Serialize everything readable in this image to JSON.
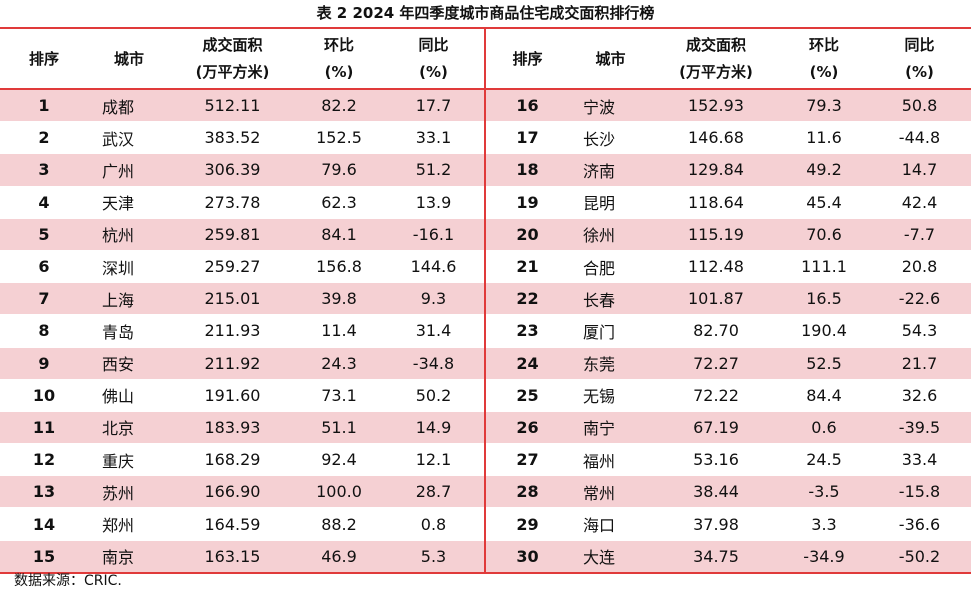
{
  "title": "表 2   2024 年四季度城市商品住宅成交面积排行榜",
  "headers": {
    "rank": "排序",
    "city": "城市",
    "area_l1": "成交面积",
    "area_l2": "(万平方米)",
    "mom_l1": "环比",
    "mom_l2": "(%)",
    "yoy_l1": "同比",
    "yoy_l2": "(%)"
  },
  "rows": [
    {
      "rank": "1",
      "city": "成都",
      "area": "512.11",
      "mom": "82.2",
      "yoy": "17.7"
    },
    {
      "rank": "2",
      "city": "武汉",
      "area": "383.52",
      "mom": "152.5",
      "yoy": "33.1"
    },
    {
      "rank": "3",
      "city": "广州",
      "area": "306.39",
      "mom": "79.6",
      "yoy": "51.2"
    },
    {
      "rank": "4",
      "city": "天津",
      "area": "273.78",
      "mom": "62.3",
      "yoy": "13.9"
    },
    {
      "rank": "5",
      "city": "杭州",
      "area": "259.81",
      "mom": "84.1",
      "yoy": "-16.1"
    },
    {
      "rank": "6",
      "city": "深圳",
      "area": "259.27",
      "mom": "156.8",
      "yoy": "144.6"
    },
    {
      "rank": "7",
      "city": "上海",
      "area": "215.01",
      "mom": "39.8",
      "yoy": "9.3"
    },
    {
      "rank": "8",
      "city": "青岛",
      "area": "211.93",
      "mom": "11.4",
      "yoy": "31.4"
    },
    {
      "rank": "9",
      "city": "西安",
      "area": "211.92",
      "mom": "24.3",
      "yoy": "-34.8"
    },
    {
      "rank": "10",
      "city": "佛山",
      "area": "191.60",
      "mom": "73.1",
      "yoy": "50.2"
    },
    {
      "rank": "11",
      "city": "北京",
      "area": "183.93",
      "mom": "51.1",
      "yoy": "14.9"
    },
    {
      "rank": "12",
      "city": "重庆",
      "area": "168.29",
      "mom": "92.4",
      "yoy": "12.1"
    },
    {
      "rank": "13",
      "city": "苏州",
      "area": "166.90",
      "mom": "100.0",
      "yoy": "28.7"
    },
    {
      "rank": "14",
      "city": "郑州",
      "area": "164.59",
      "mom": "88.2",
      "yoy": "0.8"
    },
    {
      "rank": "15",
      "city": "南京",
      "area": "163.15",
      "mom": "46.9",
      "yoy": "5.3"
    },
    {
      "rank": "16",
      "city": "宁波",
      "area": "152.93",
      "mom": "79.3",
      "yoy": "50.8"
    },
    {
      "rank": "17",
      "city": "长沙",
      "area": "146.68",
      "mom": "11.6",
      "yoy": "-44.8"
    },
    {
      "rank": "18",
      "city": "济南",
      "area": "129.84",
      "mom": "49.2",
      "yoy": "14.7"
    },
    {
      "rank": "19",
      "city": "昆明",
      "area": "118.64",
      "mom": "45.4",
      "yoy": "42.4"
    },
    {
      "rank": "20",
      "city": "徐州",
      "area": "115.19",
      "mom": "70.6",
      "yoy": "-7.7"
    },
    {
      "rank": "21",
      "city": "合肥",
      "area": "112.48",
      "mom": "111.1",
      "yoy": "20.8"
    },
    {
      "rank": "22",
      "city": "长春",
      "area": "101.87",
      "mom": "16.5",
      "yoy": "-22.6"
    },
    {
      "rank": "23",
      "city": "厦门",
      "area": "82.70",
      "mom": "190.4",
      "yoy": "54.3"
    },
    {
      "rank": "24",
      "city": "东莞",
      "area": "72.27",
      "mom": "52.5",
      "yoy": "21.7"
    },
    {
      "rank": "25",
      "city": "无锡",
      "area": "72.22",
      "mom": "84.4",
      "yoy": "32.6"
    },
    {
      "rank": "26",
      "city": "南宁",
      "area": "67.19",
      "mom": "0.6",
      "yoy": "-39.5"
    },
    {
      "rank": "27",
      "city": "福州",
      "area": "53.16",
      "mom": "24.5",
      "yoy": "33.4"
    },
    {
      "rank": "28",
      "city": "常州",
      "area": "38.44",
      "mom": "-3.5",
      "yoy": "-15.8"
    },
    {
      "rank": "29",
      "city": "海口",
      "area": "37.98",
      "mom": "3.3",
      "yoy": "-36.6"
    },
    {
      "rank": "30",
      "city": "大连",
      "area": "34.75",
      "mom": "-34.9",
      "yoy": "-50.2"
    }
  ],
  "source": "数据来源：CRIC.",
  "colors": {
    "accent": "#e03a3a",
    "band": "#f5d0d3"
  }
}
